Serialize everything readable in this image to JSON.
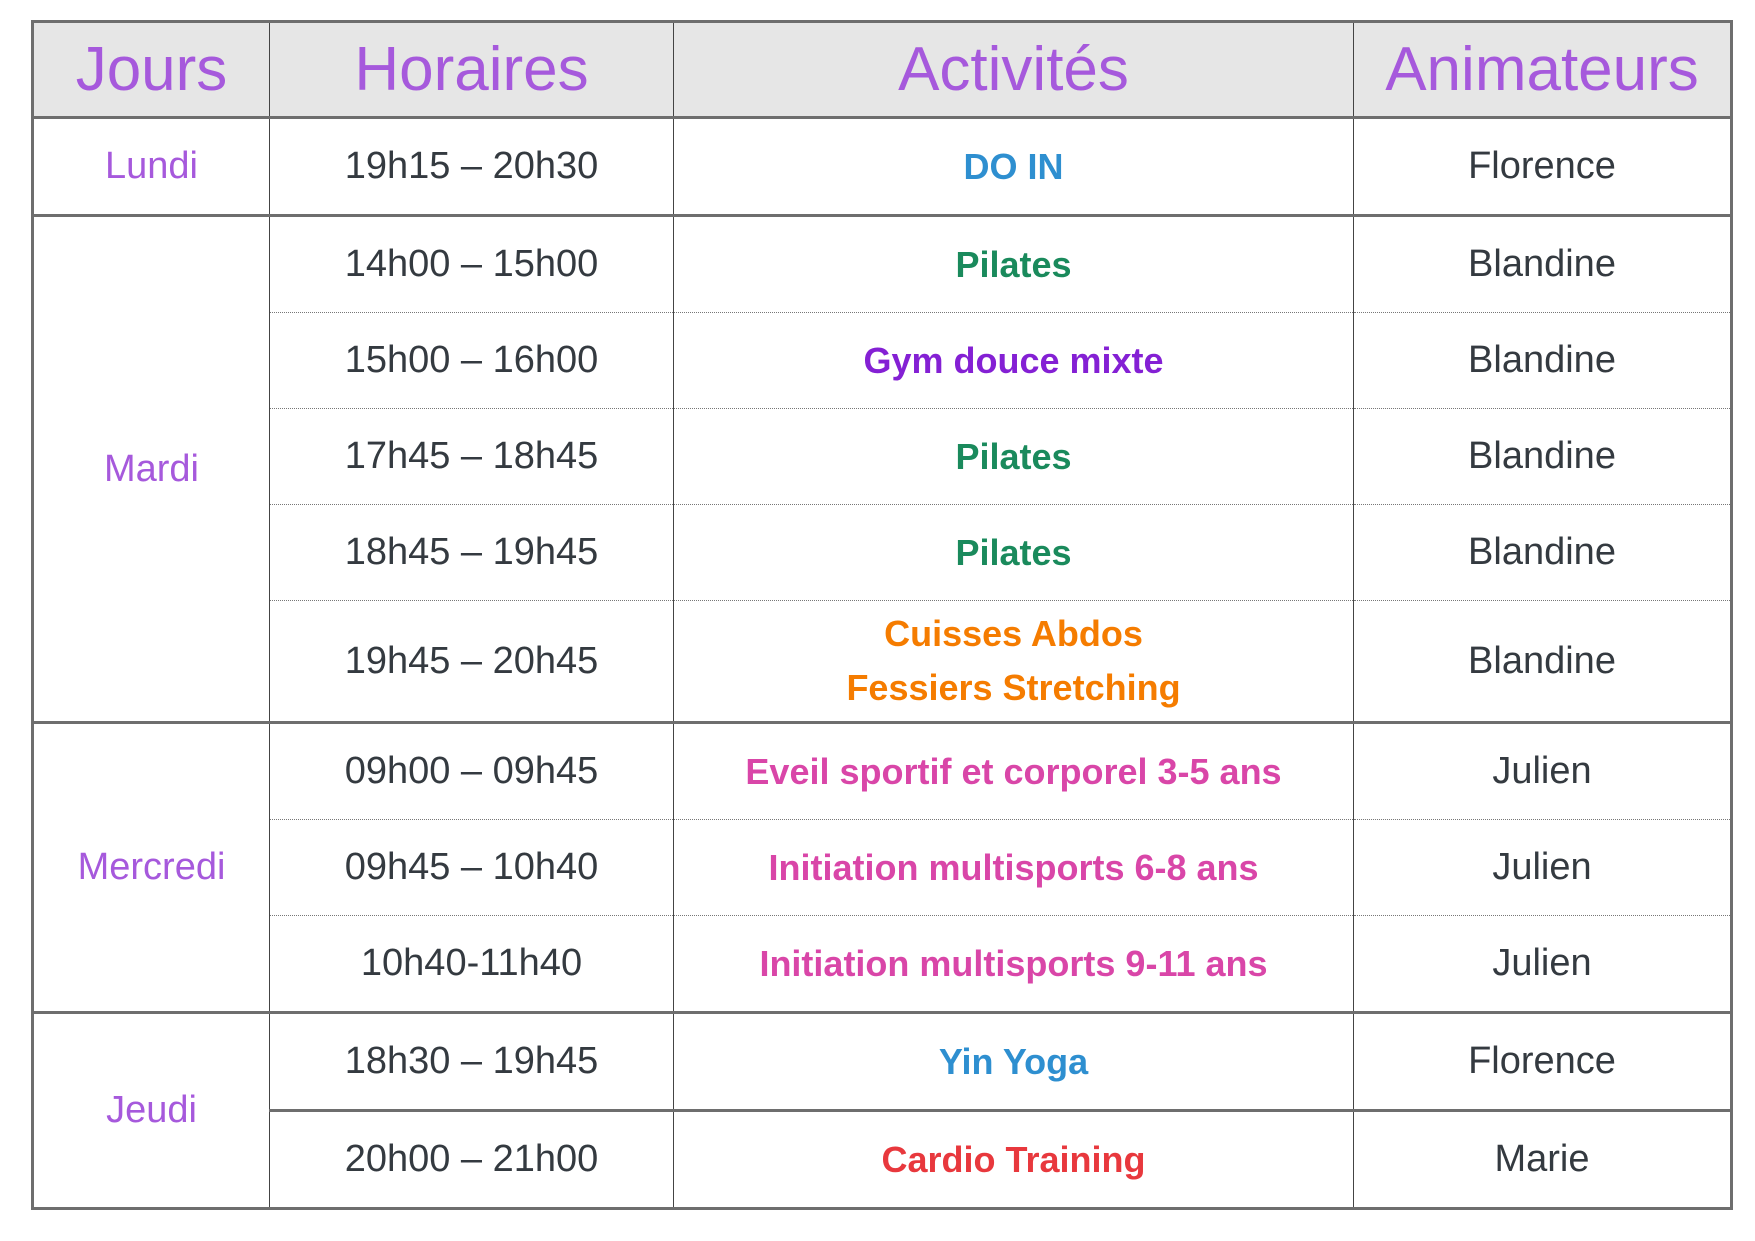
{
  "headers": [
    "Jours",
    "Horaires",
    "Activités",
    "Animateurs"
  ],
  "colors": {
    "header": "#a659dc",
    "day": "#a659dc",
    "text": "#343a40"
  },
  "groups": [
    {
      "day": "Lundi",
      "rows": [
        {
          "time": "19h15 – 20h30",
          "activity": "DO IN",
          "color": "#2e8fd0",
          "instructor": "Florence"
        }
      ]
    },
    {
      "day": "Mardi",
      "rows": [
        {
          "time": "14h00 – 15h00",
          "activity": "Pilates",
          "color": "#1a8a5c",
          "instructor": "Blandine"
        },
        {
          "time": "15h00 – 16h00",
          "activity": "Gym douce mixte",
          "color": "#8420d4",
          "instructor": "Blandine"
        },
        {
          "time": "17h45 – 18h45",
          "activity": "Pilates",
          "color": "#1a8a5c",
          "instructor": "Blandine"
        },
        {
          "time": "18h45 – 19h45",
          "activity": "Pilates",
          "color": "#1a8a5c",
          "instructor": "Blandine"
        },
        {
          "time": "19h45 – 20h45",
          "activity": "Cuisses Abdos Fessiers Stretching",
          "color": "#f57c00",
          "instructor": "Blandine"
        }
      ]
    },
    {
      "day": "Mercredi",
      "rows": [
        {
          "time": "09h00 – 09h45",
          "activity": "Eveil sportif et corporel 3-5 ans",
          "color": "#d946a8",
          "instructor": "Julien"
        },
        {
          "time": "09h45 – 10h40",
          "activity": "Initiation multisports 6-8 ans",
          "color": "#d946a8",
          "instructor": "Julien"
        },
        {
          "time": "10h40-11h40",
          "activity": "Initiation multisports 9-11 ans",
          "color": "#d946a8",
          "instructor": "Julien"
        }
      ]
    },
    {
      "day": "Jeudi",
      "rows": [
        {
          "time": "18h30 – 19h45",
          "activity": "Yin Yoga",
          "color": "#2e8fd0",
          "instructor": "Florence"
        },
        {
          "time": "20h00 – 21h00",
          "activity": "Cardio Training",
          "color": "#e8383d",
          "instructor": "Marie"
        }
      ]
    }
  ]
}
